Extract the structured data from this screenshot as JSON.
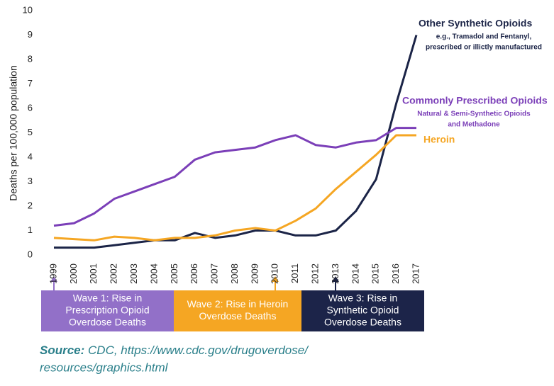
{
  "chart_data": {
    "type": "line",
    "y_label": "Deaths per 100,000 population",
    "categories": [
      "1999",
      "2000",
      "2001",
      "2002",
      "2003",
      "2004",
      "2005",
      "2006",
      "2007",
      "2008",
      "2009",
      "2010",
      "2011",
      "2012",
      "2013",
      "2014",
      "2015",
      "2016",
      "2017"
    ],
    "ylim": [
      0,
      10
    ],
    "yticks": [
      0,
      1,
      2,
      3,
      4,
      5,
      6,
      7,
      8,
      9,
      10
    ],
    "series": [
      {
        "name": "Other Synthetic Opioids",
        "note": [
          "e.g., Tramadol and Fentanyl,",
          "prescribed or illictly manufactured"
        ],
        "color": "#1b2447",
        "values": [
          0.3,
          0.3,
          0.3,
          0.4,
          0.5,
          0.6,
          0.6,
          0.9,
          0.7,
          0.8,
          1.0,
          1.0,
          0.8,
          0.8,
          1.0,
          1.8,
          3.1,
          6.2,
          9.0
        ]
      },
      {
        "name": "Commonly Prescribed Opioids",
        "note": [
          "Natural & Semi-Synthetic Opioids",
          "and Methadone"
        ],
        "color": "#7b3fb8",
        "values": [
          1.2,
          1.3,
          1.7,
          2.3,
          2.6,
          2.9,
          3.2,
          3.9,
          4.2,
          4.3,
          4.4,
          4.7,
          4.9,
          4.5,
          4.4,
          4.6,
          4.7,
          5.2,
          5.2
        ]
      },
      {
        "name": "Heroin",
        "color": "#f5a623",
        "values": [
          0.7,
          0.65,
          0.6,
          0.75,
          0.7,
          0.6,
          0.7,
          0.7,
          0.8,
          1.0,
          1.1,
          1.0,
          1.4,
          1.9,
          2.7,
          3.4,
          4.1,
          4.9,
          4.9
        ]
      }
    ],
    "waves": [
      {
        "lines": [
          "Wave 1: Rise in",
          "Prescription Opioid",
          "Overdose Deaths"
        ],
        "color": "#9270c8"
      },
      {
        "lines": [
          "Wave 2: Rise in Heroin",
          "Overdose Deaths"
        ],
        "color": "#f5a623"
      },
      {
        "lines": [
          "Wave 3: Rise in",
          "Synthetic Opioid",
          "Overdose Deaths"
        ],
        "color": "#1c2449"
      }
    ],
    "source": {
      "label": "Source:",
      "lines": [
        "CDC, https://www.cdc.gov/drugoverdose/",
        "resources/graphics.html"
      ]
    }
  }
}
